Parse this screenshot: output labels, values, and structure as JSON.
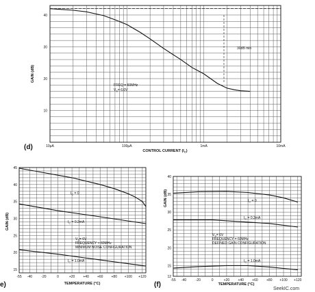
{
  "chart_data": [
    {
      "id": "d",
      "type": "line",
      "panel_label": "(d)",
      "xlabel": "CONTROL CURRENT (I",
      "xlabel_sub": "C",
      "xlabel_end": ")",
      "ylabel": "GAIN (dB)",
      "xscale": "log",
      "xlim": [
        1e-05,
        0.01
      ],
      "ylim": [
        0,
        43
      ],
      "x_ticks": [
        {
          "v": 1e-05,
          "label": "10μA"
        },
        {
          "v": 0.0001,
          "label": "100μA"
        },
        {
          "v": 0.001,
          "label": "1mA"
        },
        {
          "v": 0.01,
          "label": "10mA"
        }
      ],
      "y_ticks": [
        {
          "v": 10,
          "label": "10"
        },
        {
          "v": 20,
          "label": "20"
        },
        {
          "v": 30,
          "label": "30"
        },
        {
          "v": 40,
          "label": "40"
        }
      ],
      "series": [
        {
          "x": [
            1e-05,
            2e-05,
            3e-05,
            5e-05,
            7e-05,
            0.0001,
            0.00015,
            0.0002,
            0.0003,
            0.0005,
            0.0007,
            0.001,
            0.0015,
            0.002,
            0.0025,
            0.003,
            0.004
          ],
          "y": [
            42,
            41.5,
            41,
            39.8,
            38.5,
            37,
            34.5,
            32.5,
            29.5,
            26,
            23.5,
            21.5,
            18.5,
            17,
            16.5,
            16.2,
            16
          ]
        }
      ],
      "reference_line": 42,
      "annotations": [
        {
          "lines": [
            "FREQ = 60MHz",
            "V",
            "= 6.0V"
          ],
          "sub": "S"
        },
        {
          "text": "30dB min"
        }
      ]
    },
    {
      "id": "e",
      "type": "line",
      "panel_label": "e)",
      "xlabel": "TEMPERATURE (°C)",
      "ylabel": "GAIN (dB)",
      "xlim": [
        -55,
        125
      ],
      "ylim": [
        14,
        45
      ],
      "x_ticks": [
        -55,
        -40,
        -20,
        0,
        20,
        40,
        60,
        80,
        100,
        120
      ],
      "x_tick_labels": [
        "-55",
        "-40",
        "-20",
        "0",
        "+20",
        "+40",
        "+60",
        "+80",
        "+100",
        "+120"
      ],
      "y_ticks": [
        15,
        20,
        25,
        30,
        35,
        40,
        45
      ],
      "series": [
        {
          "name": "I_C = 0",
          "label_main": "I",
          "label_sub": "C",
          "label_rest": " = 0",
          "x": [
            -55,
            -20,
            20,
            60,
            80,
            100,
            110,
            120,
            125
          ],
          "y": [
            44.8,
            43.5,
            42,
            40,
            38.8,
            37.3,
            36.3,
            35,
            33.5
          ]
        },
        {
          "name": "I_C = 0.2mA",
          "label_main": "I",
          "label_sub": "C",
          "label_rest": " = 0.2mA",
          "x": [
            -55,
            0,
            60,
            125
          ],
          "y": [
            34.3,
            32.3,
            30.5,
            28.5
          ]
        },
        {
          "name": "I_C = 1.0mA",
          "label_main": "I",
          "label_sub": "C",
          "label_rest": " = 1.0mA",
          "x": [
            -55,
            0,
            60,
            125
          ],
          "y": [
            20.8,
            19.5,
            17.8,
            16
          ]
        }
      ],
      "annotations": [
        {
          "lines": [
            "V",
            "= 6V",
            "FREQUENCY = 60MHz",
            "MINIMUM NOISE CONFIGURATION"
          ],
          "sub": "S"
        }
      ]
    },
    {
      "id": "f",
      "type": "line",
      "panel_label": "(f)",
      "xlabel": "TEMPERATURE (°C)",
      "ylabel": "GAIN (dB)",
      "xlim": [
        -55,
        125
      ],
      "ylim": [
        12,
        40
      ],
      "x_ticks": [
        -55,
        -40,
        -20,
        0,
        20,
        40,
        60,
        80,
        100,
        120
      ],
      "x_tick_labels": [
        "-55",
        "-40",
        "-20",
        "0",
        "+20",
        "+40",
        "+60",
        "+80",
        "+100",
        "+120"
      ],
      "y_ticks": [
        12,
        15,
        20,
        25,
        30,
        35,
        40
      ],
      "series": [
        {
          "name": "I_C = 0",
          "label_main": "I",
          "label_sub": "C",
          "label_rest": " = 0",
          "x": [
            -55,
            -20,
            20,
            50,
            80,
            100,
            120
          ],
          "y": [
            35.3,
            35.7,
            35.8,
            35.5,
            34.8,
            34,
            32.8
          ]
        },
        {
          "name": "I_C = 0.2mA",
          "label_main": "I",
          "label_sub": "C",
          "label_rest": " = 0.2mA",
          "x": [
            -55,
            0,
            40,
            80,
            120
          ],
          "y": [
            27.8,
            27.8,
            27.3,
            26.8,
            25.8
          ]
        },
        {
          "name": "I_C = 1.0mA",
          "label_main": "I",
          "label_sub": "C",
          "label_rest": " = 1.0mA",
          "x": [
            -55,
            -20,
            20,
            50,
            80,
            100,
            120
          ],
          "y": [
            14.3,
            14.7,
            15,
            15,
            14.6,
            14.2,
            13.8
          ]
        }
      ],
      "annotations": [
        {
          "lines": [
            "V",
            "= 6V",
            "FREQUENCY = 60MHz",
            "DEFINED GAIN CONFIGURATION"
          ],
          "sub": "S"
        }
      ]
    }
  ],
  "watermark": "SeekIC.com"
}
